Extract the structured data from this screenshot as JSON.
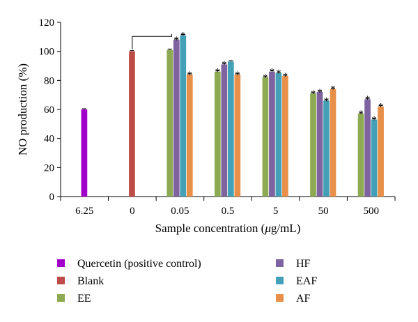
{
  "chart_data": {
    "type": "bar",
    "xlabel": "Sample concentration (μg/mL)",
    "ylabel": "NO production (%)",
    "ylim": [
      0,
      120
    ],
    "yticks": [
      0,
      20,
      40,
      60,
      80,
      100,
      120
    ],
    "grid": false,
    "legend_position": "bottom",
    "categories": [
      "6.25",
      "0",
      "0.05",
      "0.5",
      "5",
      "50",
      "500"
    ],
    "series": [
      {
        "name": "Quercetin (positive control)",
        "color": "#A000C8",
        "values": [
          60,
          null,
          null,
          null,
          null,
          null,
          null
        ],
        "errors": [
          0.5,
          null,
          null,
          null,
          null,
          null,
          null
        ],
        "significant": [
          false,
          false,
          false,
          false,
          false,
          false,
          false
        ]
      },
      {
        "name": "Blank",
        "color": "#BE4B48",
        "values": [
          null,
          100,
          null,
          null,
          null,
          null,
          null
        ],
        "errors": [
          null,
          0.5,
          null,
          null,
          null,
          null,
          null
        ],
        "significant": [
          false,
          false,
          false,
          false,
          false,
          false,
          false
        ]
      },
      {
        "name": "EE",
        "color": "#8DAA52",
        "values": [
          null,
          null,
          101,
          86,
          82,
          71,
          57
        ],
        "errors": [
          null,
          null,
          0.6,
          0.6,
          0.6,
          0.6,
          0.6
        ],
        "significant": [
          false,
          false,
          false,
          true,
          true,
          true,
          true
        ]
      },
      {
        "name": "HF",
        "color": "#7E63A0",
        "values": [
          null,
          null,
          108,
          91,
          86,
          72,
          67
        ],
        "errors": [
          null,
          null,
          0.6,
          0.6,
          0.6,
          0.6,
          0.6
        ],
        "significant": [
          false,
          false,
          true,
          true,
          true,
          true,
          true
        ]
      },
      {
        "name": "EAF",
        "color": "#43A0B6",
        "values": [
          null,
          null,
          111,
          93,
          85,
          66,
          53
        ],
        "errors": [
          null,
          null,
          0.6,
          0.6,
          0.6,
          0.6,
          0.6
        ],
        "significant": [
          false,
          false,
          true,
          false,
          true,
          true,
          true
        ]
      },
      {
        "name": "AF",
        "color": "#E8904A",
        "values": [
          null,
          null,
          84,
          84,
          83,
          74,
          62
        ],
        "errors": [
          null,
          null,
          0.6,
          0.6,
          0.6,
          0.6,
          0.6
        ],
        "significant": [
          false,
          false,
          true,
          true,
          true,
          true,
          true
        ]
      }
    ],
    "significance_marker": "*",
    "bracket": {
      "from_category": "0",
      "to_category": "0.05"
    }
  }
}
